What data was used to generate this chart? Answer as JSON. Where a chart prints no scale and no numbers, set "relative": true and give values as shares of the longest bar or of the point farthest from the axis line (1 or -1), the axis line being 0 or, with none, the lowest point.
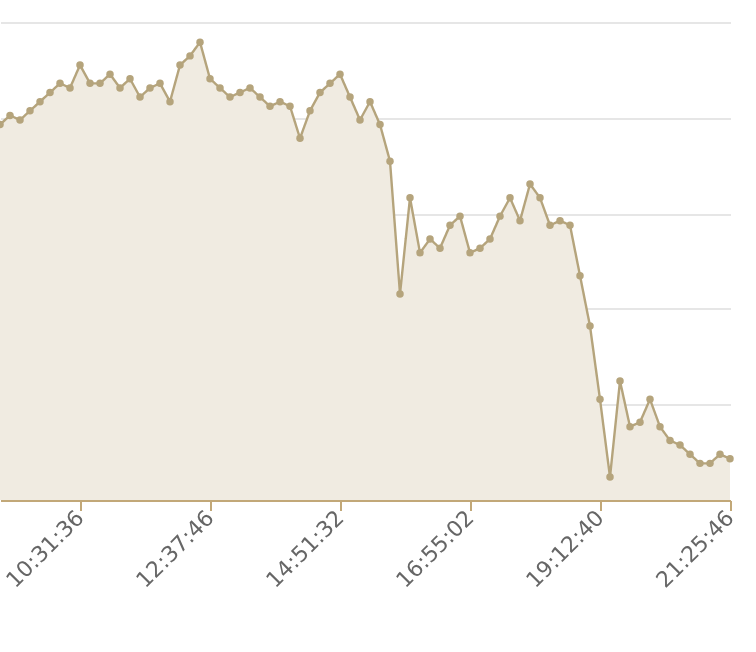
{
  "chart_data": {
    "type": "area",
    "relative": true,
    "grid": "y",
    "marker": "circle",
    "line_style": "solid",
    "categories": [
      null,
      null,
      null,
      null,
      null,
      null,
      null,
      null,
      "10:31:36",
      null,
      null,
      null,
      null,
      null,
      null,
      null,
      null,
      null,
      null,
      null,
      null,
      "12:37:46",
      null,
      null,
      null,
      null,
      null,
      null,
      null,
      null,
      null,
      null,
      null,
      null,
      "14:51:32",
      null,
      null,
      null,
      null,
      null,
      null,
      null,
      null,
      null,
      null,
      null,
      null,
      "16:55:02",
      null,
      null,
      null,
      null,
      null,
      null,
      null,
      null,
      null,
      null,
      null,
      null,
      "19:12:40",
      null,
      null,
      null,
      null,
      null,
      null,
      null,
      null,
      null,
      null,
      null,
      null,
      "21:25:46"
    ],
    "series": [
      {
        "color": "#b5a47c",
        "values": [
          0.82,
          0.84,
          0.83,
          0.85,
          0.87,
          0.89,
          0.91,
          0.9,
          0.95,
          0.91,
          0.91,
          0.93,
          0.9,
          0.92,
          0.88,
          0.9,
          0.91,
          0.87,
          0.95,
          0.97,
          1,
          0.92,
          0.9,
          0.88,
          0.89,
          0.9,
          0.88,
          0.86,
          0.87,
          0.86,
          0.79,
          0.85,
          0.89,
          0.91,
          0.93,
          0.88,
          0.83,
          0.87,
          0.82,
          0.74,
          0.45,
          0.66,
          0.54,
          0.57,
          0.55,
          0.6,
          0.62,
          0.54,
          0.55,
          0.57,
          0.62,
          0.66,
          0.61,
          0.69,
          0.66,
          0.6,
          0.61,
          0.6,
          0.49,
          0.38,
          0.22,
          0.05,
          0.26,
          0.16,
          0.17,
          0.22,
          0.16,
          0.13,
          0.12,
          0.1,
          0.08,
          0.08,
          0.1,
          0.09
        ]
      }
    ]
  }
}
